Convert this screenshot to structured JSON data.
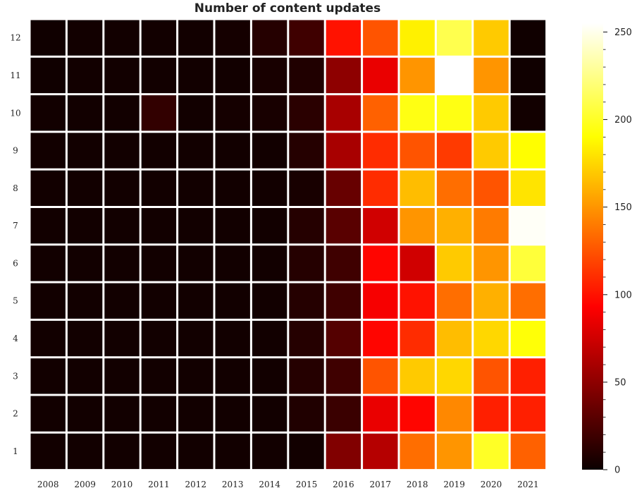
{
  "chart_data": {
    "type": "heatmap",
    "title": "Number of content updates",
    "xlabel": "",
    "ylabel": "",
    "x_categories": [
      "2008",
      "2009",
      "2010",
      "2011",
      "2012",
      "2013",
      "2014",
      "2015",
      "2016",
      "2017",
      "2018",
      "2019",
      "2020",
      "2021"
    ],
    "y_categories": [
      "12",
      "11",
      "10",
      "9",
      "8",
      "7",
      "6",
      "5",
      "4",
      "3",
      "2",
      "1"
    ],
    "values": [
      [
        2,
        3,
        3,
        3,
        3,
        4,
        10,
        20,
        100,
        125,
        185,
        210,
        170,
        2
      ],
      [
        2,
        3,
        3,
        3,
        3,
        3,
        5,
        8,
        50,
        85,
        150,
        255,
        150,
        2
      ],
      [
        3,
        3,
        3,
        15,
        3,
        4,
        5,
        12,
        60,
        130,
        195,
        195,
        170,
        3
      ],
      [
        3,
        3,
        3,
        3,
        3,
        3,
        3,
        10,
        60,
        110,
        125,
        115,
        170,
        190
      ],
      [
        3,
        3,
        3,
        3,
        3,
        3,
        3,
        5,
        35,
        110,
        165,
        135,
        125,
        180
      ],
      [
        3,
        3,
        3,
        3,
        3,
        3,
        3,
        10,
        30,
        75,
        150,
        160,
        140,
        253
      ],
      [
        3,
        3,
        3,
        3,
        3,
        3,
        3,
        10,
        20,
        95,
        75,
        170,
        150,
        205
      ],
      [
        3,
        3,
        3,
        3,
        3,
        3,
        3,
        10,
        20,
        90,
        100,
        135,
        160,
        135
      ],
      [
        3,
        3,
        3,
        3,
        3,
        3,
        3,
        10,
        28,
        95,
        110,
        165,
        175,
        192
      ],
      [
        3,
        3,
        3,
        3,
        3,
        3,
        3,
        10,
        20,
        125,
        170,
        175,
        125,
        105
      ],
      [
        3,
        3,
        3,
        3,
        3,
        3,
        3,
        8,
        18,
        85,
        95,
        145,
        105,
        105
      ],
      [
        3,
        3,
        3,
        3,
        3,
        3,
        3,
        3,
        45,
        65,
        135,
        150,
        200,
        130
      ]
    ],
    "colorbar": {
      "colormap": "hot",
      "range": [
        0,
        255
      ],
      "ticks": [
        0,
        50,
        100,
        150,
        200,
        250
      ]
    }
  }
}
